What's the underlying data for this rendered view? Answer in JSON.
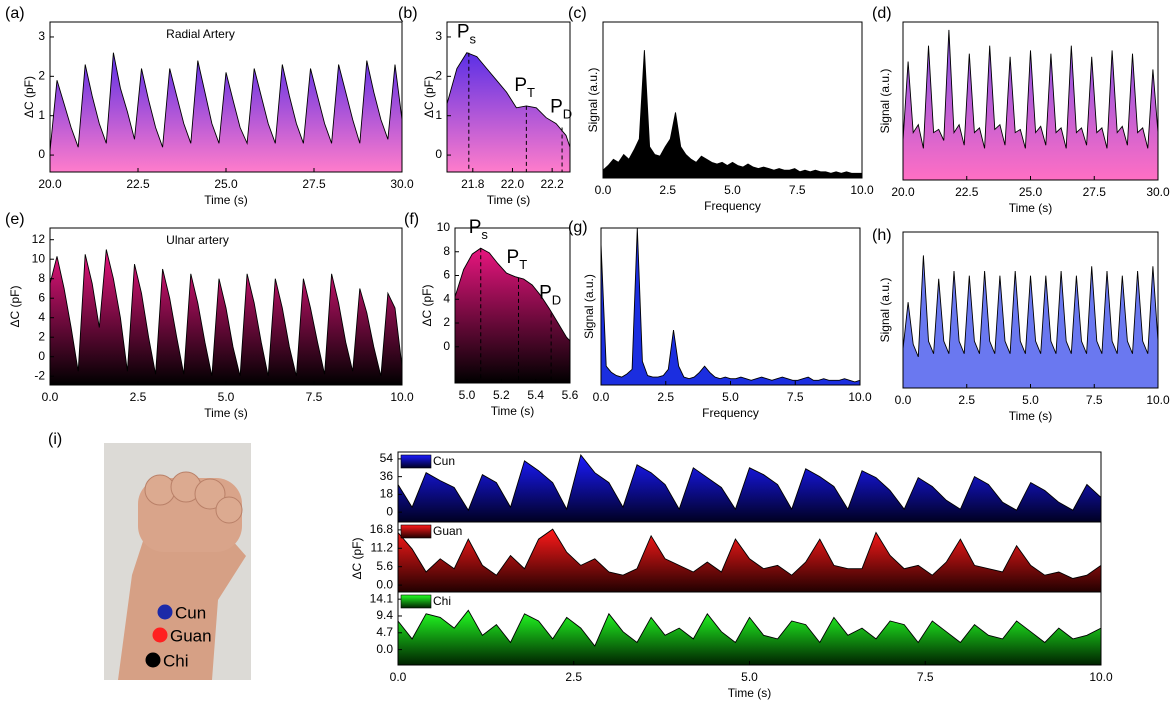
{
  "chart_data": [
    {
      "type": "area",
      "label": "(a)",
      "annotation": "Radial Artery",
      "xlabel": "Time (s)",
      "ylabel": "ΔC (pF)",
      "x": [
        20,
        20.2,
        20.4,
        20.6,
        20.8,
        21,
        21.2,
        21.4,
        21.6,
        21.8,
        22,
        22.2,
        22.4,
        22.6,
        22.8,
        23,
        23.2,
        23.4,
        23.6,
        23.8,
        24,
        24.2,
        24.4,
        24.6,
        24.8,
        25,
        25.2,
        25.4,
        25.6,
        25.8,
        26,
        26.2,
        26.4,
        26.6,
        26.8,
        27,
        27.2,
        27.4,
        27.6,
        27.8,
        28,
        28.2,
        28.4,
        28.6,
        28.8,
        29,
        29.2,
        29.4,
        29.6,
        29.8,
        30
      ],
      "values": [
        0.1,
        1.9,
        1.3,
        0.7,
        0.2,
        2.3,
        1.5,
        0.8,
        0.3,
        2.6,
        1.7,
        1.1,
        0.4,
        2.2,
        1.4,
        0.7,
        0.2,
        2.2,
        1.5,
        0.8,
        0.3,
        2.4,
        1.6,
        0.8,
        0.3,
        2.1,
        1.4,
        0.7,
        0.3,
        2.2,
        1.5,
        0.8,
        0.3,
        2.3,
        1.5,
        0.8,
        0.3,
        2.2,
        1.5,
        0.8,
        0.3,
        2.3,
        1.6,
        0.9,
        0.3,
        2.4,
        1.6,
        0.9,
        0.4,
        2.3,
        0.9
      ],
      "xlim": [
        20,
        30
      ],
      "xticks": [
        {
          "value": 20,
          "label": "20.0"
        },
        22.5,
        {
          "value": 25,
          "label": "25.0"
        },
        27.5,
        {
          "value": 30,
          "label": "30.0"
        }
      ],
      "ylim": [
        -0.43,
        3.38
      ],
      "yticks": [
        0,
        1,
        2,
        3
      ],
      "color_top": "#5b2fe6",
      "color_bottom": "#ff7ccb"
    },
    {
      "type": "area",
      "label": "(b)",
      "xlabel": "Time (s)",
      "ylabel": "ΔC (pF)",
      "x": [
        21.67,
        21.72,
        21.77,
        21.82,
        21.87,
        21.92,
        21.97,
        22.02,
        22.07,
        22.12,
        22.17,
        22.22,
        22.27,
        22.29
      ],
      "values": [
        1.3,
        2.2,
        2.6,
        2.5,
        2.2,
        1.9,
        1.6,
        1.2,
        1.25,
        1.2,
        0.95,
        0.8,
        0.5,
        0.2
      ],
      "xlim": [
        21.67,
        22.29
      ],
      "xticks": [
        21.8,
        {
          "value": 22,
          "label": "22.0"
        },
        22.2
      ],
      "ylim": [
        -0.43,
        3.38
      ],
      "yticks": [
        0,
        1,
        2,
        3
      ],
      "color_top": "#5b2fe6",
      "color_bottom": "#ff7ccb",
      "annotations": [
        {
          "text": "P",
          "sub": "s",
          "x": 21.78,
          "y": 2.6
        },
        {
          "text": "P",
          "sub": "T",
          "x": 22.07,
          "y": 1.25
        },
        {
          "text": "P",
          "sub": "D",
          "x": 22.25,
          "y": 0.7
        }
      ]
    },
    {
      "type": "area",
      "label": "(c)",
      "xlabel": "Frequency",
      "ylabel": "Signal (a.u.)",
      "x": [
        0,
        0.2,
        0.4,
        0.6,
        0.8,
        1,
        1.2,
        1.4,
        1.6,
        1.8,
        2,
        2.2,
        2.4,
        2.6,
        2.8,
        3,
        3.2,
        3.4,
        3.6,
        3.8,
        4,
        4.2,
        4.4,
        4.6,
        4.8,
        5,
        5.2,
        5.4,
        5.6,
        5.8,
        6,
        6.2,
        6.4,
        6.6,
        6.8,
        7,
        7.2,
        7.4,
        7.6,
        7.8,
        8,
        8.2,
        8.4,
        8.6,
        8.8,
        9,
        9.2,
        9.4,
        9.6,
        9.8,
        10
      ],
      "values": [
        0.05,
        0.08,
        0.12,
        0.1,
        0.15,
        0.12,
        0.18,
        0.25,
        0.82,
        0.2,
        0.15,
        0.14,
        0.2,
        0.25,
        0.42,
        0.2,
        0.15,
        0.12,
        0.1,
        0.14,
        0.12,
        0.1,
        0.09,
        0.1,
        0.08,
        0.1,
        0.08,
        0.07,
        0.09,
        0.07,
        0.06,
        0.07,
        0.06,
        0.05,
        0.06,
        0.05,
        0.05,
        0.06,
        0.04,
        0.05,
        0.04,
        0.05,
        0.04,
        0.04,
        0.03,
        0.04,
        0.03,
        0.04,
        0.03,
        0.03,
        0.03
      ],
      "xlim": [
        0,
        10
      ],
      "xticks": [
        {
          "value": 0,
          "label": "0.0"
        },
        2.5,
        {
          "value": 5,
          "label": "5.0"
        },
        7.5,
        {
          "value": 10,
          "label": "10.0"
        }
      ],
      "ylim": [
        0,
        1
      ],
      "color_top": "#000000",
      "color_bottom": "#000000"
    },
    {
      "type": "area",
      "label": "(d)",
      "xlabel": "Time (s)",
      "ylabel": "Signal (a.u.)",
      "x": [
        20,
        20.2,
        20.4,
        20.6,
        20.8,
        21,
        21.2,
        21.4,
        21.6,
        21.8,
        22,
        22.2,
        22.4,
        22.6,
        22.8,
        23,
        23.2,
        23.4,
        23.6,
        23.8,
        24,
        24.2,
        24.4,
        24.6,
        24.8,
        25,
        25.2,
        25.4,
        25.6,
        25.8,
        26,
        26.2,
        26.4,
        26.6,
        26.8,
        27,
        27.2,
        27.4,
        27.6,
        27.8,
        28,
        28.2,
        28.4,
        28.6,
        28.8,
        29,
        29.2,
        29.4,
        29.6,
        29.8,
        30
      ],
      "values": [
        0.25,
        0.75,
        0.3,
        0.35,
        0.2,
        0.85,
        0.3,
        0.32,
        0.25,
        0.95,
        0.3,
        0.35,
        0.22,
        0.8,
        0.3,
        0.33,
        0.2,
        0.85,
        0.32,
        0.35,
        0.22,
        0.78,
        0.3,
        0.32,
        0.2,
        0.82,
        0.3,
        0.34,
        0.22,
        0.8,
        0.3,
        0.33,
        0.2,
        0.85,
        0.3,
        0.33,
        0.22,
        0.78,
        0.3,
        0.33,
        0.2,
        0.82,
        0.3,
        0.34,
        0.22,
        0.8,
        0.3,
        0.33,
        0.2,
        0.7,
        0.3
      ],
      "xlim": [
        20,
        30
      ],
      "xticks": [
        {
          "value": 20,
          "label": "20.0"
        },
        22.5,
        {
          "value": 25,
          "label": "25.0"
        },
        27.5,
        {
          "value": 30,
          "label": "30.0"
        }
      ],
      "ylim": [
        0,
        1
      ],
      "color_top": "#7b4de6",
      "color_bottom": "#ff6fc4"
    },
    {
      "type": "area",
      "label": "(e)",
      "annotation": "Ulnar artery",
      "xlabel": "Time (s)",
      "ylabel": "ΔC (pF)",
      "x": [
        0,
        0.2,
        0.4,
        0.6,
        0.8,
        1,
        1.2,
        1.4,
        1.6,
        1.8,
        2,
        2.2,
        2.4,
        2.6,
        2.8,
        3,
        3.2,
        3.4,
        3.6,
        3.8,
        4,
        4.2,
        4.4,
        4.6,
        4.8,
        5,
        5.2,
        5.4,
        5.6,
        5.8,
        6,
        6.2,
        6.4,
        6.6,
        6.8,
        7,
        7.2,
        7.4,
        7.6,
        7.8,
        8,
        8.2,
        8.4,
        8.6,
        8.8,
        9,
        9.2,
        9.4,
        9.6,
        9.8,
        10
      ],
      "values": [
        7.5,
        10.3,
        7,
        3,
        -1.5,
        10.5,
        7.5,
        3,
        11,
        8,
        4,
        -1.5,
        9.5,
        6.5,
        2,
        -1.8,
        9,
        6,
        2,
        -1.8,
        8.5,
        5.5,
        1.5,
        -2,
        8,
        5,
        1,
        -2,
        8.5,
        5.5,
        1.5,
        -2,
        8,
        5,
        1,
        -2,
        8,
        5,
        1.5,
        -1.8,
        8.5,
        5.5,
        1.5,
        -1.5,
        7,
        4.5,
        1,
        -2,
        6.5,
        5,
        -1
      ],
      "xlim": [
        0,
        10
      ],
      "xticks": [
        {
          "value": 0,
          "label": "0.0"
        },
        2.5,
        {
          "value": 5,
          "label": "5.0"
        },
        7.5,
        {
          "value": 10,
          "label": "10.0"
        }
      ],
      "ylim": [
        -2.9,
        13.2
      ],
      "yticks": [
        -2,
        0,
        2,
        4,
        6,
        8,
        10,
        12
      ],
      "color_top": "#e8157f",
      "color_bottom": "#000000"
    },
    {
      "type": "area",
      "label": "(f)",
      "xlabel": "Time (s)",
      "ylabel": "ΔC (pF)",
      "x": [
        4.93,
        4.98,
        5.03,
        5.08,
        5.13,
        5.18,
        5.23,
        5.28,
        5.33,
        5.38,
        5.43,
        5.48,
        5.53,
        5.58,
        5.6
      ],
      "values": [
        4.2,
        6.5,
        7.8,
        8.3,
        7.9,
        7,
        6.2,
        5.9,
        5.7,
        5.2,
        4.3,
        3.2,
        2,
        0.8,
        0.5
      ],
      "xlim": [
        4.93,
        5.6
      ],
      "xticks": [
        {
          "value": 5,
          "label": "5.0"
        },
        5.2,
        5.4,
        5.6
      ],
      "ylim": [
        -3.05,
        10
      ],
      "yticks": [
        0,
        2,
        4,
        6,
        8,
        10
      ],
      "color_top": "#e8157f",
      "color_bottom": "#000000",
      "annotations": [
        {
          "text": "P",
          "sub": "s",
          "x": 5.08,
          "y": 8.3
        },
        {
          "text": "P",
          "sub": "T",
          "x": 5.3,
          "y": 5.8
        },
        {
          "text": "P",
          "sub": "D",
          "x": 5.49,
          "y": 2.8
        }
      ]
    },
    {
      "type": "area",
      "label": "(g)",
      "xlabel": "Frequency",
      "ylabel": "Signal (a.u.)",
      "x": [
        0,
        0.2,
        0.4,
        0.6,
        0.8,
        1,
        1.2,
        1.4,
        1.6,
        1.8,
        2,
        2.2,
        2.4,
        2.6,
        2.8,
        3,
        3.2,
        3.4,
        3.6,
        3.8,
        4,
        4.2,
        4.4,
        4.6,
        4.8,
        5,
        5.2,
        5.4,
        5.6,
        5.8,
        6,
        6.2,
        6.4,
        6.6,
        6.8,
        7,
        7.2,
        7.4,
        7.6,
        7.8,
        8,
        8.2,
        8.4,
        8.6,
        8.8,
        9,
        9.2,
        9.4,
        9.6,
        9.8,
        10
      ],
      "values": [
        0.9,
        0.12,
        0.08,
        0.06,
        0.05,
        0.07,
        0.1,
        1,
        0.15,
        0.06,
        0.05,
        0.05,
        0.06,
        0.1,
        0.35,
        0.12,
        0.05,
        0.04,
        0.05,
        0.08,
        0.12,
        0.08,
        0.05,
        0.04,
        0.05,
        0.04,
        0.04,
        0.05,
        0.04,
        0.03,
        0.04,
        0.05,
        0.04,
        0.03,
        0.04,
        0.05,
        0.04,
        0.03,
        0.03,
        0.04,
        0.05,
        0.03,
        0.03,
        0.04,
        0.03,
        0.03,
        0.03,
        0.04,
        0.03,
        0.02,
        0.03
      ],
      "xlim": [
        0,
        10
      ],
      "xticks": [
        {
          "value": 0,
          "label": "0.0"
        },
        2.5,
        {
          "value": 5,
          "label": "5.0"
        },
        7.5,
        {
          "value": 10,
          "label": "10.0"
        }
      ],
      "ylim": [
        0,
        1
      ],
      "color_top": "#1b2ee0",
      "color_bottom": "#1b2ee0"
    },
    {
      "type": "area",
      "label": "(h)",
      "xlabel": "Time (s)",
      "ylabel": "Signal (a.u.)",
      "x": [
        0,
        0.2,
        0.4,
        0.6,
        0.8,
        1,
        1.2,
        1.4,
        1.6,
        1.8,
        2,
        2.2,
        2.4,
        2.6,
        2.8,
        3,
        3.2,
        3.4,
        3.6,
        3.8,
        4,
        4.2,
        4.4,
        4.6,
        4.8,
        5,
        5.2,
        5.4,
        5.6,
        5.8,
        6,
        6.2,
        6.4,
        6.6,
        6.8,
        7,
        7.2,
        7.4,
        7.6,
        7.8,
        8,
        8.2,
        8.4,
        8.6,
        8.8,
        9,
        9.2,
        9.4,
        9.6,
        9.8,
        10
      ],
      "values": [
        0.25,
        0.55,
        0.28,
        0.2,
        0.85,
        0.3,
        0.22,
        0.7,
        0.3,
        0.22,
        0.75,
        0.3,
        0.22,
        0.72,
        0.3,
        0.22,
        0.75,
        0.3,
        0.22,
        0.72,
        0.3,
        0.22,
        0.75,
        0.3,
        0.22,
        0.72,
        0.3,
        0.22,
        0.72,
        0.3,
        0.22,
        0.75,
        0.3,
        0.22,
        0.72,
        0.3,
        0.22,
        0.78,
        0.3,
        0.22,
        0.75,
        0.3,
        0.22,
        0.72,
        0.3,
        0.22,
        0.75,
        0.3,
        0.22,
        0.78,
        0.3
      ],
      "xlim": [
        0,
        10
      ],
      "xticks": [
        {
          "value": 0,
          "label": "0.0"
        },
        2.5,
        {
          "value": 5,
          "label": "5.0"
        },
        7.5,
        {
          "value": 10,
          "label": "10.0"
        }
      ],
      "ylim": [
        0,
        1
      ],
      "color_top": "#6a78f0",
      "color_bottom": "#6a78f0"
    },
    {
      "type": "multi-area",
      "label": "(i)",
      "xlabel": "Time (s)",
      "ylabel": "ΔC (pF)",
      "x": [
        0,
        0.2,
        0.4,
        0.6,
        0.8,
        1,
        1.2,
        1.4,
        1.6,
        1.8,
        2,
        2.2,
        2.4,
        2.6,
        2.8,
        3,
        3.2,
        3.4,
        3.6,
        3.8,
        4,
        4.2,
        4.4,
        4.6,
        4.8,
        5,
        5.2,
        5.4,
        5.6,
        5.8,
        6,
        6.2,
        6.4,
        6.6,
        6.8,
        7,
        7.2,
        7.4,
        7.6,
        7.8,
        8,
        8.2,
        8.4,
        8.6,
        8.8,
        9,
        9.2,
        9.4,
        9.6,
        9.8,
        10
      ],
      "xlim": [
        0,
        10
      ],
      "xticks": [
        {
          "value": 0,
          "label": "0.0"
        },
        2.5,
        {
          "value": 5,
          "label": "5.0"
        },
        7.5,
        {
          "value": 10,
          "label": "10.0"
        }
      ],
      "series": [
        {
          "name": "Cun",
          "color_top": "#1a1aff",
          "color_bottom": "#000022",
          "marker_color": "#1c2aa8",
          "ylim": [
            -10,
            61
          ],
          "yticks": [
            0,
            18,
            36,
            54
          ],
          "values": [
            28,
            5,
            40,
            32,
            25,
            2,
            38,
            30,
            5,
            52,
            42,
            30,
            3,
            58,
            40,
            30,
            5,
            48,
            40,
            28,
            3,
            45,
            35,
            25,
            3,
            45,
            38,
            28,
            3,
            44,
            36,
            26,
            3,
            42,
            35,
            22,
            3,
            35,
            26,
            12,
            3,
            36,
            28,
            10,
            2,
            30,
            22,
            10,
            2,
            28,
            15
          ]
        },
        {
          "name": "Guan",
          "color_top": "#ff1a1a",
          "color_bottom": "#220000",
          "marker_color": "#ff2020",
          "ylim": [
            -2.1,
            19.2
          ],
          "yticks": [
            {
              "value": 0,
              "label": "0.0"
            },
            5.6,
            11.2,
            16.8
          ],
          "values": [
            16,
            11,
            4,
            8,
            5,
            14,
            6,
            3,
            9,
            5,
            14,
            17,
            10,
            6,
            8,
            4,
            3,
            5,
            15,
            8,
            6,
            4,
            7,
            4,
            14,
            8,
            5,
            6,
            3,
            7,
            14,
            6,
            5,
            5,
            16,
            9,
            5,
            6,
            3,
            7,
            14,
            6,
            5,
            4,
            12,
            6,
            3,
            4,
            2,
            3,
            6
          ]
        },
        {
          "name": "Chi",
          "color_top": "#22ff22",
          "color_bottom": "#002200",
          "marker_color": "#000000",
          "ylim": [
            -4.3,
            16.1
          ],
          "yticks": [
            {
              "value": 0,
              "label": "0.0"
            },
            4.7,
            9.4,
            14.1
          ],
          "values": [
            8,
            3,
            10,
            9,
            6,
            11,
            4,
            7,
            2,
            10,
            8,
            3,
            9,
            6,
            1,
            10,
            5,
            2,
            9,
            4,
            6,
            3,
            10,
            5,
            2,
            9,
            4,
            3,
            8,
            7,
            2,
            9,
            4,
            6,
            3,
            8,
            7,
            2,
            8,
            5,
            2,
            7,
            4,
            3,
            8,
            5,
            2,
            6,
            3,
            4,
            6
          ]
        }
      ]
    }
  ]
}
